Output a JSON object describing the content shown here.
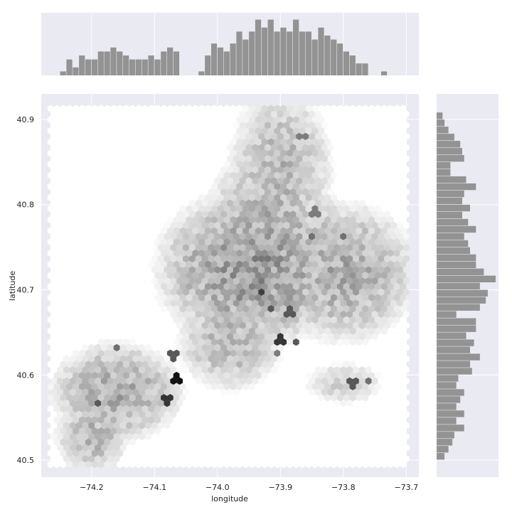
{
  "chart_data": {
    "type": "hexbin-jointplot",
    "xlabel": "longitude",
    "ylabel": "latitude",
    "x_ticks": [
      -74.2,
      -74.1,
      -74.0,
      -73.9,
      -73.8,
      -73.7
    ],
    "x_tick_labels": [
      "−74.2",
      "−74.1",
      "−74.0",
      "−73.9",
      "−73.8",
      "−73.7"
    ],
    "y_ticks": [
      40.5,
      40.6,
      40.7,
      40.8,
      40.9
    ],
    "y_tick_labels": [
      "40.5",
      "40.6",
      "40.7",
      "40.8",
      "40.9"
    ],
    "xlim": [
      -74.28,
      -73.68
    ],
    "ylim": [
      40.48,
      40.93
    ],
    "grid": true,
    "colors": {
      "background": "#eaeaf2",
      "grid": "#ffffff",
      "bar": "#939393",
      "hex_min": "#ffffff",
      "hex_max": "#111111"
    },
    "marginal_x": {
      "bin_start": -74.26,
      "bin_width": 0.01,
      "counts": [
        0,
        1,
        4,
        2,
        5,
        4,
        4,
        6,
        6,
        7,
        6,
        5,
        4,
        4,
        4,
        5,
        4,
        6,
        7,
        6,
        0,
        0,
        0,
        1,
        5,
        8,
        7,
        6,
        8,
        11,
        9,
        11,
        14,
        12,
        14,
        11,
        12,
        11,
        14,
        11,
        11,
        9,
        12,
        10,
        9,
        8,
        6,
        5,
        3,
        3,
        0,
        0,
        1
      ],
      "ymax": 15
    },
    "marginal_y": {
      "bin_start": 40.5,
      "bin_width": 0.00833,
      "counts": [
        4,
        6,
        8,
        9,
        14,
        10,
        14,
        10,
        12,
        14,
        10,
        11,
        18,
        17,
        22,
        17,
        19,
        15,
        20,
        20,
        10,
        22,
        25,
        26,
        22,
        30,
        24,
        20,
        20,
        17,
        16,
        14,
        20,
        16,
        13,
        17,
        13,
        14,
        20,
        15,
        7,
        7,
        14,
        13,
        12,
        9,
        6,
        4,
        3,
        0
      ],
      "xmax": 30
    },
    "hexbin": {
      "grid_x0": -74.265,
      "grid_dx": 0.01,
      "grid_y0": 40.495,
      "grid_rows": 48,
      "grid_cols": 60,
      "regions": [
        {
          "cx": -73.945,
          "cy": 40.725,
          "rx": 0.13,
          "ry": 0.08,
          "w": 1.0
        },
        {
          "cx": -73.92,
          "cy": 40.76,
          "rx": 0.09,
          "ry": 0.09,
          "w": 0.8
        },
        {
          "cx": -73.9,
          "cy": 40.84,
          "rx": 0.07,
          "ry": 0.08,
          "w": 0.7
        },
        {
          "cx": -73.8,
          "cy": 40.72,
          "rx": 0.1,
          "ry": 0.07,
          "w": 0.8
        },
        {
          "cx": -73.98,
          "cy": 40.64,
          "rx": 0.07,
          "ry": 0.05,
          "w": 0.7
        },
        {
          "cx": -74.16,
          "cy": 40.58,
          "rx": 0.09,
          "ry": 0.05,
          "w": 0.8
        },
        {
          "cx": -74.2,
          "cy": 40.53,
          "rx": 0.05,
          "ry": 0.04,
          "w": 0.7
        },
        {
          "cx": -73.85,
          "cy": 40.76,
          "rx": 0.06,
          "ry": 0.05,
          "w": 0.6
        },
        {
          "cx": -73.8,
          "cy": 40.59,
          "rx": 0.05,
          "ry": 0.02,
          "w": 0.5
        }
      ],
      "hotspots": [
        {
          "lon": -74.065,
          "lat": 40.595,
          "level": 1.0
        },
        {
          "lon": -74.08,
          "lat": 40.572,
          "level": 0.85
        },
        {
          "lon": -74.07,
          "lat": 40.625,
          "level": 0.7
        },
        {
          "lon": -74.19,
          "lat": 40.565,
          "level": 0.7
        },
        {
          "lon": -74.16,
          "lat": 40.63,
          "level": 0.6
        },
        {
          "lon": -73.9,
          "lat": 40.64,
          "level": 0.85
        },
        {
          "lon": -73.875,
          "lat": 40.64,
          "level": 0.7
        },
        {
          "lon": -73.93,
          "lat": 40.695,
          "level": 0.8
        },
        {
          "lon": -73.915,
          "lat": 40.675,
          "level": 0.7
        },
        {
          "lon": -73.885,
          "lat": 40.672,
          "level": 0.7
        },
        {
          "lon": -73.85,
          "lat": 40.76,
          "level": 0.6
        },
        {
          "lon": -73.8,
          "lat": 40.763,
          "level": 0.6
        },
        {
          "lon": -73.785,
          "lat": 40.59,
          "level": 0.7
        },
        {
          "lon": -73.76,
          "lat": 40.595,
          "level": 0.6
        },
        {
          "lon": -73.905,
          "lat": 40.625,
          "level": 0.55
        },
        {
          "lon": -73.865,
          "lat": 40.88,
          "level": 0.55
        },
        {
          "lon": -73.845,
          "lat": 40.79,
          "level": 0.55
        }
      ]
    }
  }
}
